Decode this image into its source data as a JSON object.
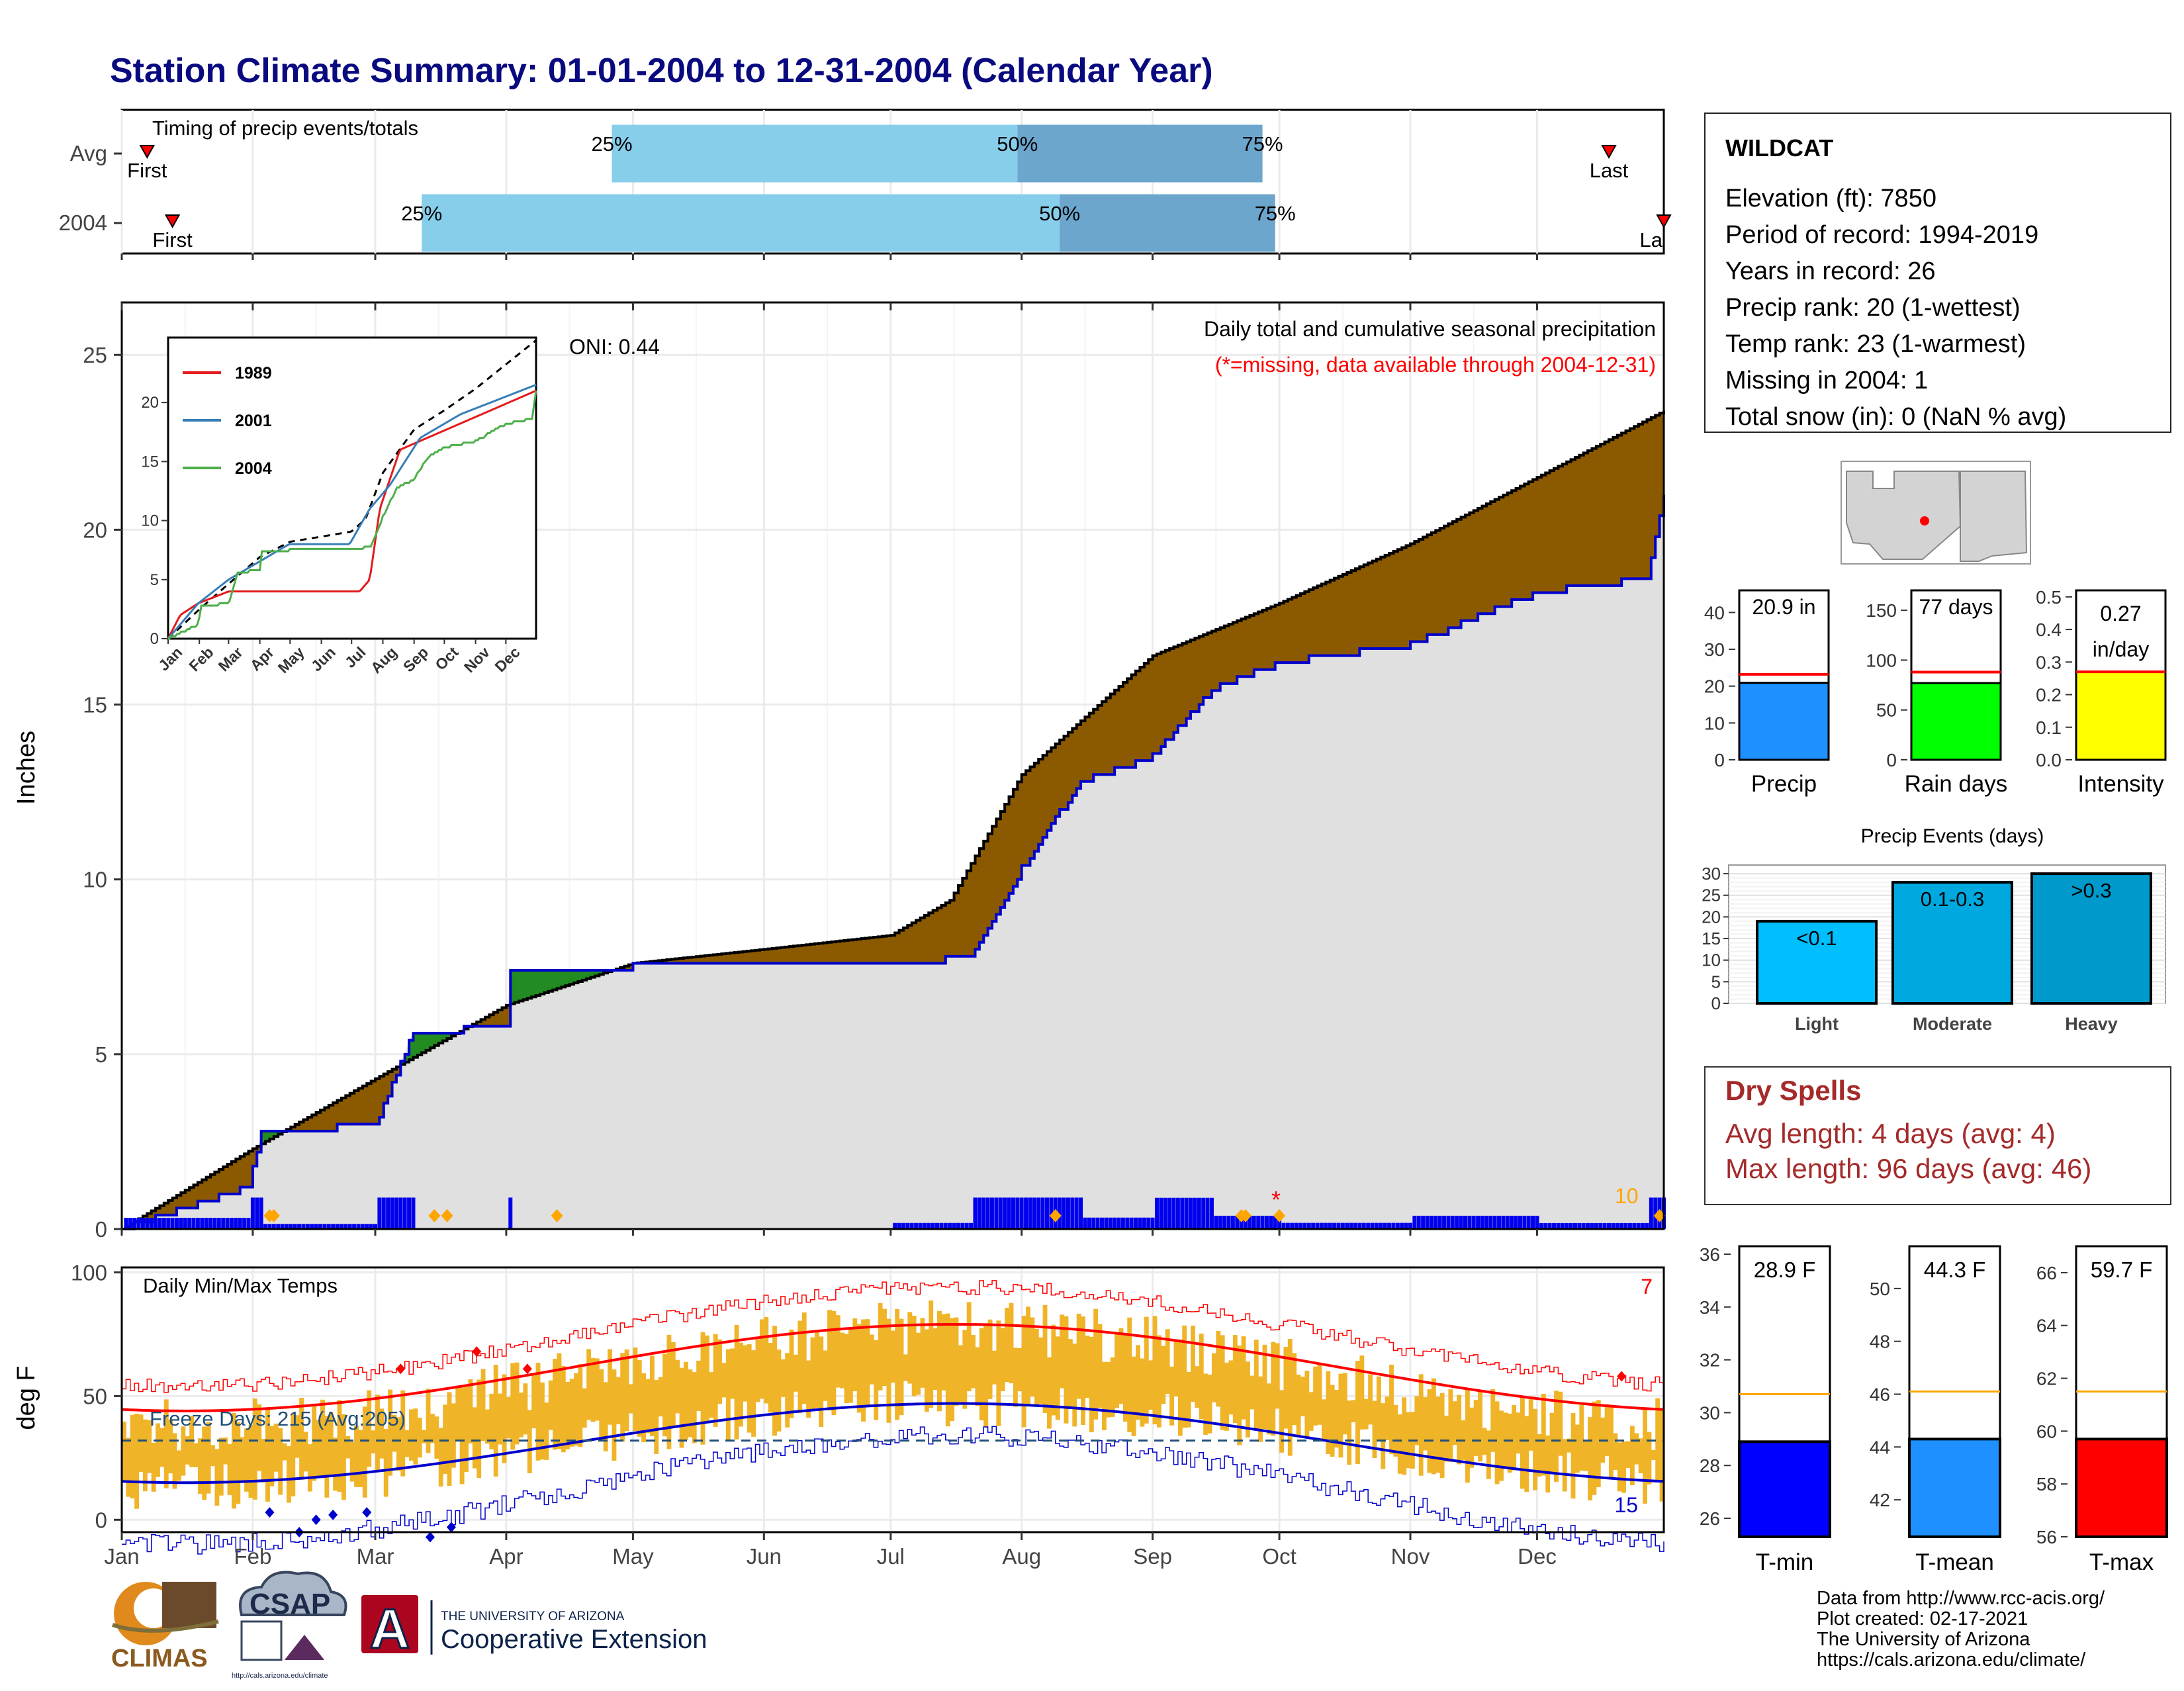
{
  "title": "Station Climate Summary: 01-01-2004 to 12-31-2004 (Calendar Year)",
  "months": [
    "Jan",
    "Feb",
    "Mar",
    "Apr",
    "May",
    "Jun",
    "Jul",
    "Aug",
    "Sep",
    "Oct",
    "Nov",
    "Dec"
  ],
  "timing": {
    "title": "Timing of precip events/totals",
    "rows": [
      {
        "label": "Avg",
        "first_doy": 6,
        "p25_doy": 116,
        "p50_doy": 212,
        "p75_doy": 270,
        "last_doy": 352,
        "first_label": "First",
        "last_label": "Last",
        "p25_label": "25%",
        "p50_label": "50%",
        "p75_label": "75%"
      },
      {
        "label": "2004",
        "first_doy": 12,
        "p25_doy": 71,
        "p50_doy": 222,
        "p75_doy": 273,
        "last_doy": 365,
        "first_label": "First",
        "last_label": "La",
        "p25_label": "25%",
        "p50_label": "50%",
        "p75_label": "75%"
      }
    ]
  },
  "station": {
    "name": "WILDCAT",
    "lines": [
      "Elevation (ft): 7850",
      "Period of record: 1994-2019",
      "Years in record: 26",
      "Precip rank: 20 (1-wettest)",
      "Temp rank: 23 (1-warmest)",
      "Missing in 2004: 1",
      "Total snow (in): 0 (NaN % avg)"
    ]
  },
  "precip_panel": {
    "ylabel": "Inches",
    "title": "Daily total and cumulative seasonal precipitation",
    "subtitle": "(*=missing, data available through 2004-12-31)",
    "oni": "ONI: 0.44",
    "corner_count": "10",
    "missing_marker": "*",
    "yticks": [
      0,
      5,
      10,
      15,
      20,
      25
    ],
    "colors": {
      "surplus": "#8B5A00",
      "deficit": "#228B22",
      "fill": "#E0E0E0",
      "obs": "#0000CC",
      "avg": "#000000",
      "daily": "#0000EE",
      "extreme": "#FFA500",
      "note": "#FF0000"
    }
  },
  "inset": {
    "months": [
      "Jan",
      "Feb",
      "Mar",
      "Apr",
      "May",
      "Jun",
      "Jul",
      "Aug",
      "Sep",
      "Oct",
      "Nov",
      "Dec"
    ],
    "yticks": [
      0,
      5,
      10,
      15,
      20
    ],
    "series": [
      {
        "name": "1989",
        "color": "#E41A1C"
      },
      {
        "name": "2001",
        "color": "#377EB8"
      },
      {
        "name": "2004",
        "color": "#4DAF4A"
      }
    ]
  },
  "bars_summary": [
    {
      "label": "Precip",
      "value_text": "20.9 in",
      "value": 20.9,
      "avg": 23.2,
      "ymax": 46,
      "yticks": [
        0,
        10,
        20,
        30,
        40
      ],
      "color": "#1E90FF"
    },
    {
      "label": "Rain days",
      "value_text": "77 days",
      "value": 77,
      "avg": 88,
      "ymax": 170,
      "yticks": [
        0,
        50,
        100,
        150
      ],
      "color": "#00FF00"
    },
    {
      "label": "Intensity",
      "value_text1": "0.27",
      "value_text2": "in/day",
      "value": 0.27,
      "avg": 0.27,
      "ymax": 0.52,
      "yticks": [
        "0.0",
        "0.1",
        "0.2",
        "0.3",
        "0.4",
        "0.5"
      ],
      "color": "#FFFF00"
    }
  ],
  "events": {
    "title": "Precip Events (days)",
    "yticks": [
      0,
      5,
      10,
      15,
      20,
      25,
      30
    ],
    "bars": [
      {
        "category": "Light",
        "label": "<0.1",
        "value": 19,
        "color": "#00BFFF"
      },
      {
        "category": "Moderate",
        "label": "0.1-0.3",
        "value": 28,
        "color": "#00A8E0"
      },
      {
        "category": "Heavy",
        "label": ">0.3",
        "value": 30,
        "color": "#0099CC"
      }
    ]
  },
  "dry_spells": {
    "title": "Dry Spells",
    "avg_line": "Avg length: 4 days (avg: 4)",
    "max_line": "Max length: 96 days (avg: 46)"
  },
  "temp_panel": {
    "ylabel": "deg F",
    "title": "Daily Min/Max Temps",
    "max_records": "7",
    "min_records": "15",
    "freeze_text": "Freeze Days: 215 (Avg:205)",
    "yticks": [
      0,
      50,
      100
    ],
    "freeze_line": 32,
    "colors": {
      "bars": "#F0B429",
      "max": "#FF0000",
      "min": "#0000CC",
      "freeze": "#1F4E79"
    }
  },
  "temp_bars": [
    {
      "label": "T-min",
      "value_text": "28.9 F",
      "value": 28.9,
      "avg": 30.7,
      "ymin": 25.3,
      "ymax": 36.3,
      "yticks": [
        26,
        28,
        30,
        32,
        34,
        36
      ],
      "color": "#0000FF"
    },
    {
      "label": "T-mean",
      "value_text": "44.3 F",
      "value": 44.3,
      "avg": 46.1,
      "ymin": 40.6,
      "ymax": 51.6,
      "yticks": [
        42,
        44,
        46,
        48,
        50
      ],
      "color": "#1E90FF"
    },
    {
      "label": "T-max",
      "value_text": "59.7 F",
      "value": 59.7,
      "avg": 61.5,
      "ymin": 56,
      "ymax": 67,
      "yticks": [
        56,
        58,
        60,
        62,
        64,
        66
      ],
      "color": "#FF0000"
    }
  ],
  "credits": [
    "Data from http://www.rcc-acis.org/",
    "Plot created: 02-17-2021",
    "The University of Arizona",
    "https://cals.arizona.edu/climate/"
  ],
  "logos": {
    "climas": "CLIMAS",
    "csap": "CSAP",
    "csap_url": "http://cals.arizona.edu/climate",
    "ua_small": "THE UNIVERSITY OF ARIZONA",
    "ua_big": "Cooperative Extension",
    "ua_letter": "A"
  },
  "chart_data": {
    "type": "area",
    "title": "Daily total and cumulative seasonal precipitation",
    "ylabel": "Inches",
    "ylim": [
      0,
      26.5
    ],
    "x_units": "month",
    "avg_cumulative": {
      "x": [
        "01-01",
        "02-01",
        "03-01",
        "04-01",
        "05-01",
        "06-01",
        "07-01",
        "07-15",
        "08-01",
        "09-01",
        "10-01",
        "11-01",
        "12-01",
        "12-31"
      ],
      "values": [
        0,
        2.3,
        4.3,
        6.4,
        7.6,
        8.0,
        8.4,
        9.4,
        13.0,
        16.4,
        17.9,
        19.6,
        21.5,
        23.4
      ]
    },
    "obs_cumulative_2004": {
      "x": [
        "01-01",
        "01-31",
        "02-03",
        "03-01",
        "03-10",
        "04-01",
        "04-02",
        "05-01",
        "07-01",
        "07-20",
        "08-01",
        "08-15",
        "09-01",
        "09-15",
        "10-01",
        "11-01",
        "12-01",
        "12-27",
        "12-31"
      ],
      "values": [
        0,
        1.2,
        2.7,
        3.0,
        5.6,
        5.8,
        7.4,
        7.5,
        7.5,
        7.8,
        10.3,
        12.8,
        13.5,
        15.4,
        16.2,
        16.7,
        18.2,
        18.6,
        20.9
      ]
    },
    "temps": {
      "ylim": [
        -5,
        102
      ],
      "freeze_line": 32
    }
  }
}
